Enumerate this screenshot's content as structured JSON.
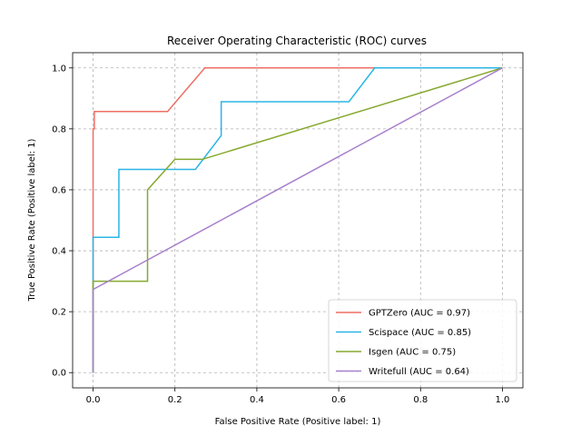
{
  "chart_data": {
    "type": "line",
    "title": "Receiver Operating Characteristic (ROC) curves",
    "xlabel": "False Positive Rate (Positive label: 1)",
    "ylabel": "True Positive Rate (Positive label: 1)",
    "xlim": [
      -0.05,
      1.05
    ],
    "ylim": [
      -0.05,
      1.05
    ],
    "xticks": [
      "0.0",
      "0.2",
      "0.4",
      "0.6",
      "0.8",
      "1.0"
    ],
    "yticks": [
      "0.0",
      "0.2",
      "0.4",
      "0.6",
      "0.8",
      "1.0"
    ],
    "grid": true,
    "legend_position": "lower-right",
    "series": [
      {
        "name": "GPTZero (AUC = 0.97)",
        "color": "#ee6f66",
        "x": [
          0,
          0,
          0.003,
          0.003,
          0.182,
          0.273,
          1.0
        ],
        "y": [
          0,
          0.8,
          0.8,
          0.857,
          0.857,
          1.0,
          1.0
        ]
      },
      {
        "name": "Scispace (AUC = 0.85)",
        "color": "#2bb5e6",
        "x": [
          0,
          0,
          0.063,
          0.063,
          0.25,
          0.313,
          0.313,
          0.625,
          0.688,
          1.0
        ],
        "y": [
          0,
          0.444,
          0.444,
          0.667,
          0.667,
          0.778,
          0.889,
          0.889,
          1.0,
          1.0
        ]
      },
      {
        "name": "Isgen (AUC = 0.75)",
        "color": "#86a92f",
        "x": [
          0,
          0,
          0.133,
          0.133,
          0.2,
          0.267,
          1.0
        ],
        "y": [
          0,
          0.3,
          0.3,
          0.6,
          0.7,
          0.7,
          1.0
        ]
      },
      {
        "name": "Writefull (AUC = 0.64)",
        "color": "#a77fcc",
        "x": [
          0,
          0,
          1.0
        ],
        "y": [
          0,
          0.273,
          1.0
        ]
      }
    ]
  }
}
